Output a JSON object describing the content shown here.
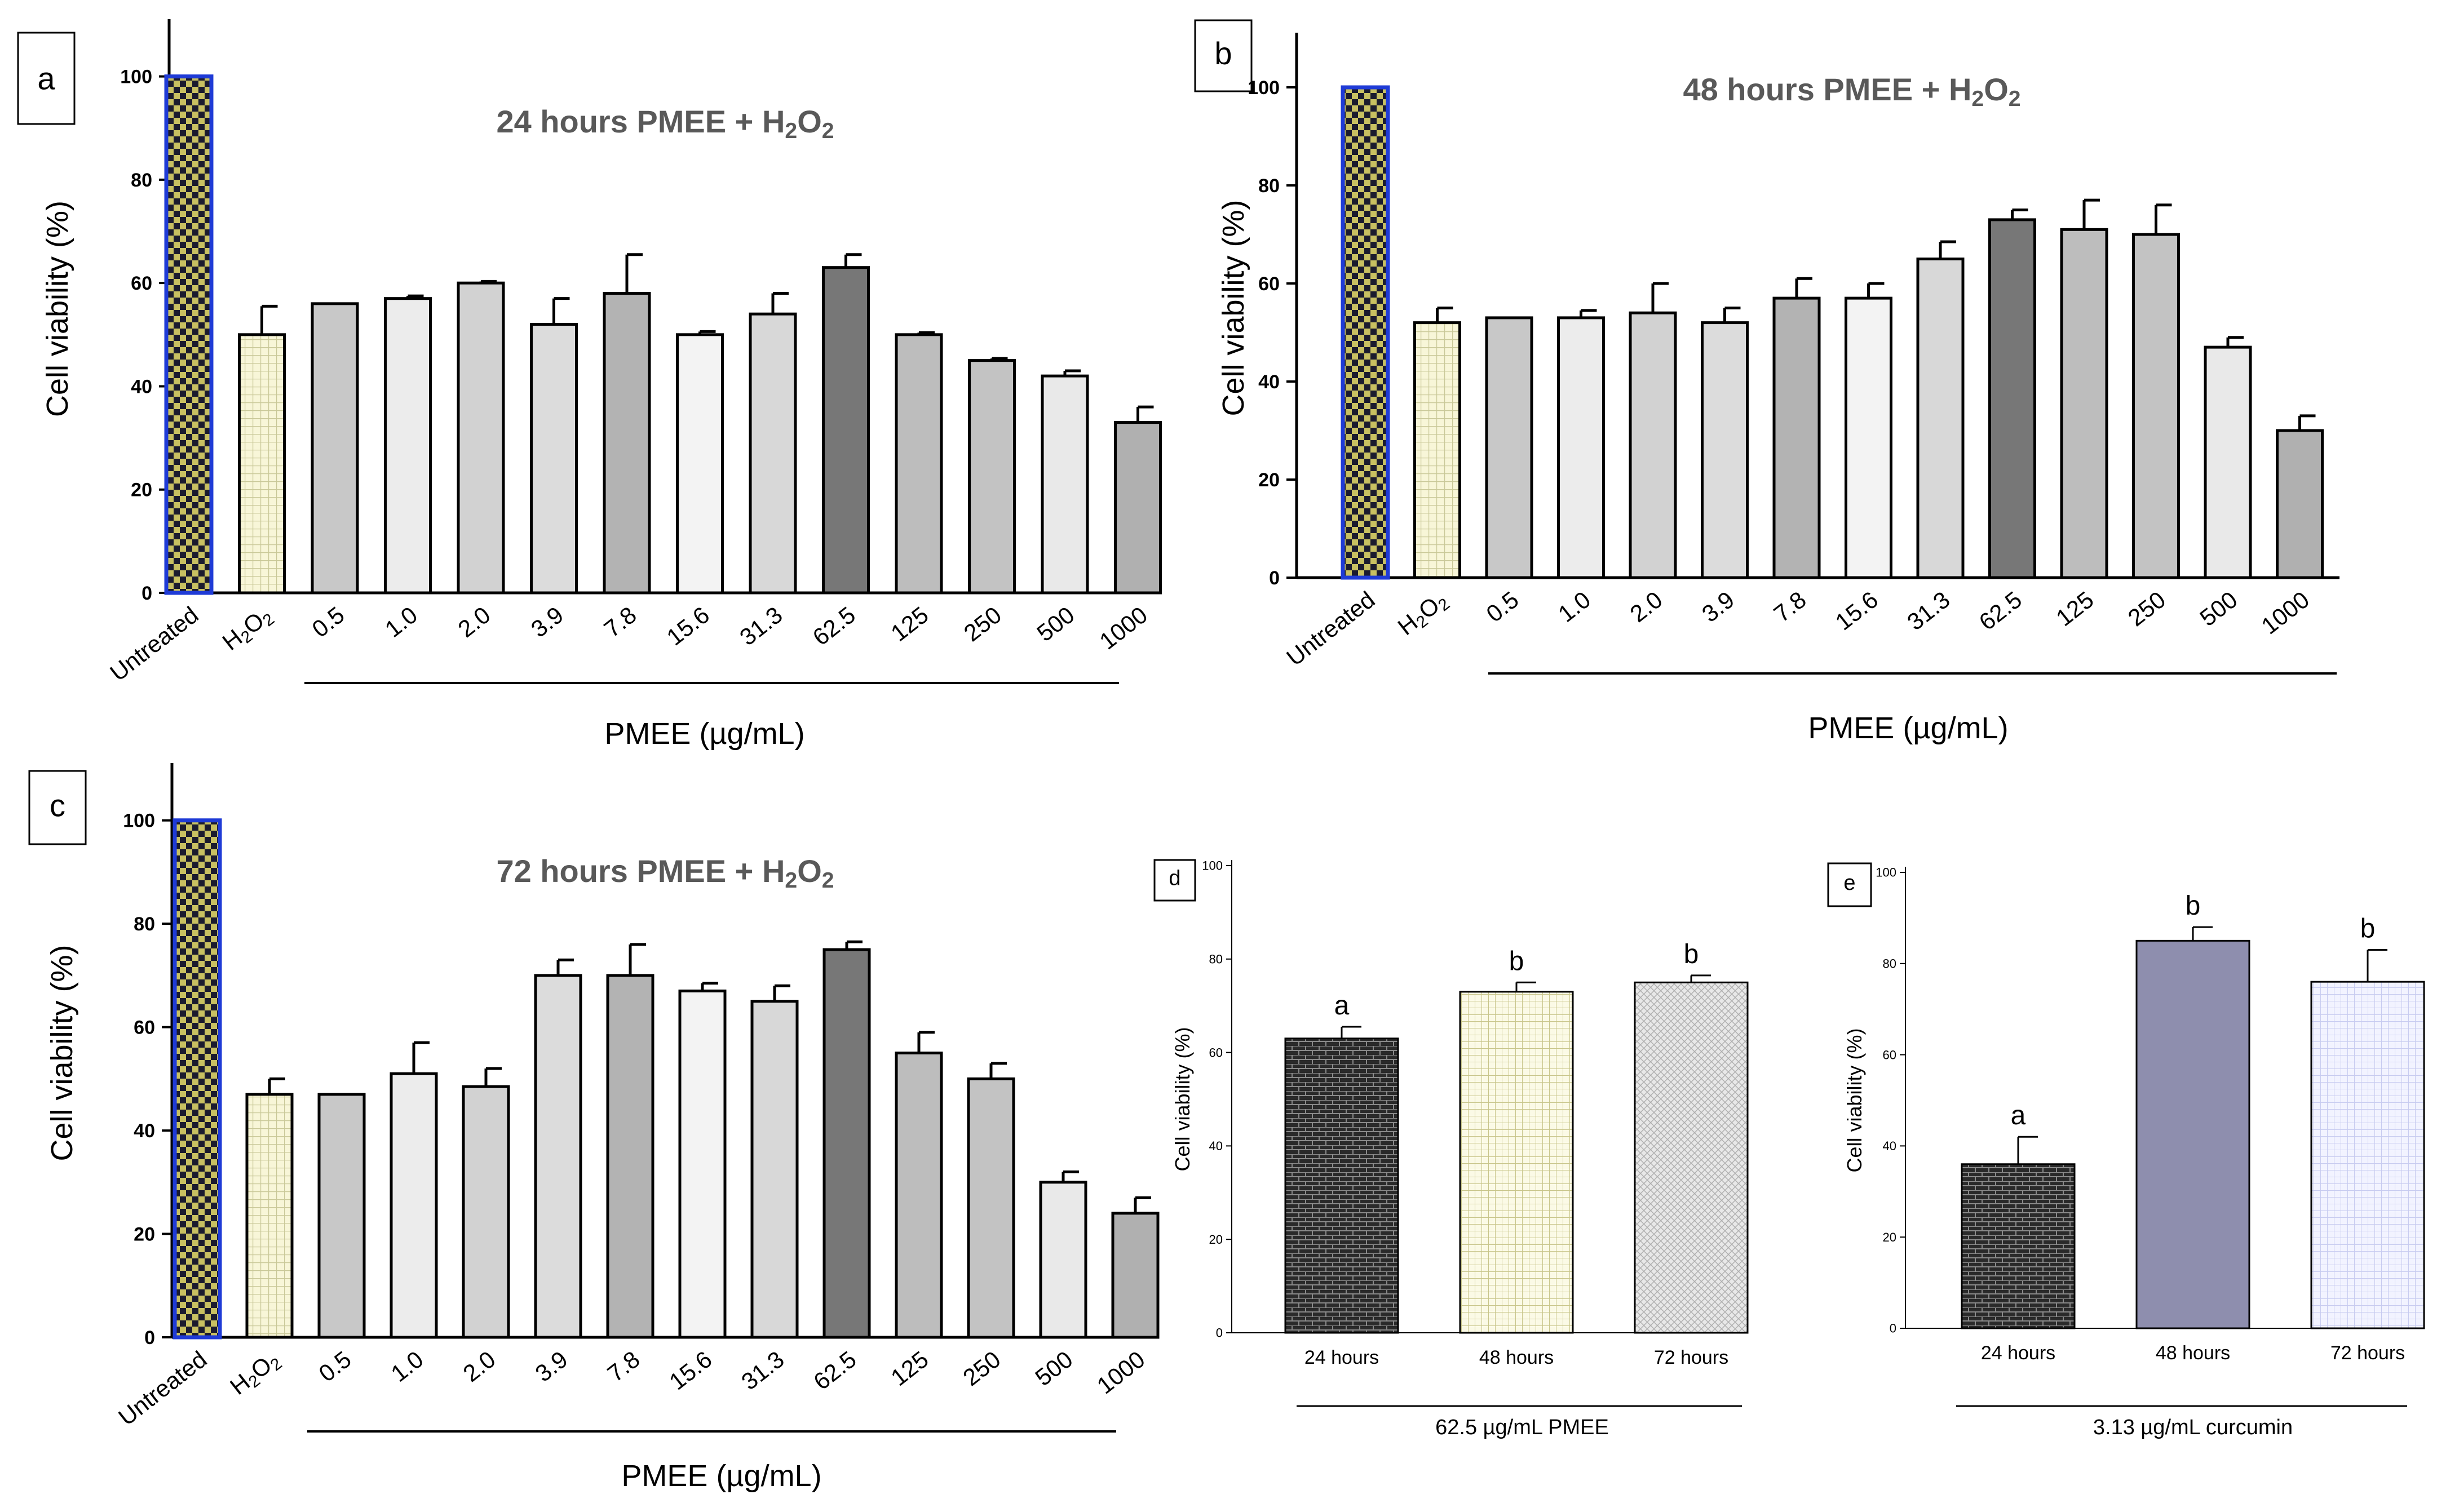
{
  "colors": {
    "axis": "#000000",
    "title_gray": "#595959",
    "untreated_edge": "#1f3bd6",
    "untreated_dark": "#1b1b2e",
    "untreated_light": "#c8c061",
    "h2o2_bg": "#f8f6d8",
    "h2o2_grid": "#d9d8a8"
  },
  "chart_data": [
    {
      "id": "a",
      "type": "bar",
      "panel_label": "a",
      "title_main": "24 hours PMEE + H",
      "title_sub1": "2",
      "title_mid": "O",
      "title_sub2": "2",
      "ylabel": "Cell viability (%)",
      "xlabel": "PMEE (µg/mL)",
      "ylim": [
        0,
        110
      ],
      "yticks": [
        "0",
        "20",
        "40",
        "60",
        "80",
        "100"
      ],
      "categories": [
        "Untreated",
        "H2O2",
        "0.5",
        "1.0",
        "2.0",
        "3.9",
        "7.8",
        "15.6",
        "31.3",
        "62.5",
        "125",
        "250",
        "500",
        "1000"
      ],
      "values": [
        100,
        50,
        56,
        57,
        60,
        52,
        58,
        50,
        54,
        63,
        50,
        45,
        42,
        33
      ],
      "errors": [
        0,
        5.5,
        0,
        0.5,
        0.3,
        5,
        7.5,
        0.6,
        4,
        2.5,
        0.4,
        0.4,
        1,
        3
      ],
      "fills": [
        "untreated",
        "h2o2",
        "#c8c8c8",
        "#ececec",
        "#d2d2d2",
        "#dcdcdc",
        "#b3b3b3",
        "#f3f3f3",
        "#d8d8d8",
        "#777777",
        "#bdbdbd",
        "#c3c3c3",
        "#e9e9e9",
        "#b0b0b0"
      ]
    },
    {
      "id": "b",
      "type": "bar",
      "panel_label": "b",
      "title_main": "48 hours PMEE + H",
      "title_sub1": "2",
      "title_mid": "O",
      "title_sub2": "2",
      "ylabel": "Cell viability (%)",
      "xlabel": "PMEE (µg/mL)",
      "ylim": [
        0,
        110
      ],
      "yticks": [
        "0",
        "20",
        "40",
        "60",
        "80",
        "100"
      ],
      "categories": [
        "Untreated",
        "H2O2",
        "0.5",
        "1.0",
        "2.0",
        "3.9",
        "7.8",
        "15.6",
        "31.3",
        "62.5",
        "125",
        "250",
        "500",
        "1000"
      ],
      "values": [
        100,
        52,
        53,
        53,
        54,
        52,
        57,
        57,
        65,
        73,
        71,
        70,
        47,
        30
      ],
      "errors": [
        0,
        3,
        0,
        1.5,
        6,
        3,
        4,
        3,
        3.5,
        2,
        6,
        6,
        2,
        3
      ],
      "fills": [
        "untreated",
        "h2o2",
        "#c8c8c8",
        "#ececec",
        "#d2d2d2",
        "#dcdcdc",
        "#b3b3b3",
        "#f3f3f3",
        "#d8d8d8",
        "#777777",
        "#bdbdbd",
        "#c3c3c3",
        "#e9e9e9",
        "#b0b0b0"
      ]
    },
    {
      "id": "c",
      "type": "bar",
      "panel_label": "c",
      "title_main": "72 hours PMEE + H",
      "title_sub1": "2",
      "title_mid": "O",
      "title_sub2": "2",
      "ylabel": "Cell viability (%)",
      "xlabel": "PMEE (µg/mL)",
      "ylim": [
        0,
        110
      ],
      "yticks": [
        "0",
        "20",
        "40",
        "60",
        "80",
        "100"
      ],
      "categories": [
        "Untreated",
        "H2O2",
        "0.5",
        "1.0",
        "2.0",
        "3.9",
        "7.8",
        "15.6",
        "31.3",
        "62.5",
        "125",
        "250",
        "500",
        "1000"
      ],
      "values": [
        100,
        47,
        47,
        51,
        48.5,
        70,
        70,
        67,
        65,
        75,
        55,
        50,
        30,
        24
      ],
      "errors": [
        0,
        3,
        0,
        6,
        3.5,
        3,
        6,
        1.5,
        3,
        1.5,
        4,
        3,
        2,
        3
      ],
      "fills": [
        "untreated",
        "h2o2",
        "#c8c8c8",
        "#ececec",
        "#d2d2d2",
        "#dcdcdc",
        "#b3b3b3",
        "#f3f3f3",
        "#d8d8d8",
        "#777777",
        "#bdbdbd",
        "#c3c3c3",
        "#e9e9e9",
        "#b0b0b0"
      ]
    },
    {
      "id": "d",
      "type": "bar",
      "panel_label": "d",
      "ylabel": "Cell viability (%)",
      "xlabel": "62.5 µg/mL PMEE",
      "ylim": [
        0,
        100
      ],
      "yticks": [
        "0",
        "20",
        "40",
        "60",
        "80",
        "100"
      ],
      "categories": [
        "24 hours",
        "48 hours",
        "72 hours"
      ],
      "values": [
        63,
        73,
        75
      ],
      "errors": [
        2.5,
        2,
        1.5
      ],
      "letters": [
        "a",
        "b",
        "b"
      ],
      "fills": [
        "brick_dark",
        "yellow_grid",
        "gray_cross"
      ]
    },
    {
      "id": "e",
      "type": "bar",
      "panel_label": "e",
      "ylabel": "Cell viability (%)",
      "xlabel": "3.13  µg/mL curcumin",
      "ylim": [
        0,
        100
      ],
      "yticks": [
        "0",
        "20",
        "40",
        "60",
        "80",
        "100"
      ],
      "categories": [
        "24 hours",
        "48 hours",
        "72 hours"
      ],
      "values": [
        36,
        85,
        76
      ],
      "errors": [
        6,
        3,
        7
      ],
      "letters": [
        "a",
        "b",
        "b"
      ],
      "fills": [
        "brick_dark",
        "#8e8eae",
        "blue_grid"
      ]
    }
  ]
}
